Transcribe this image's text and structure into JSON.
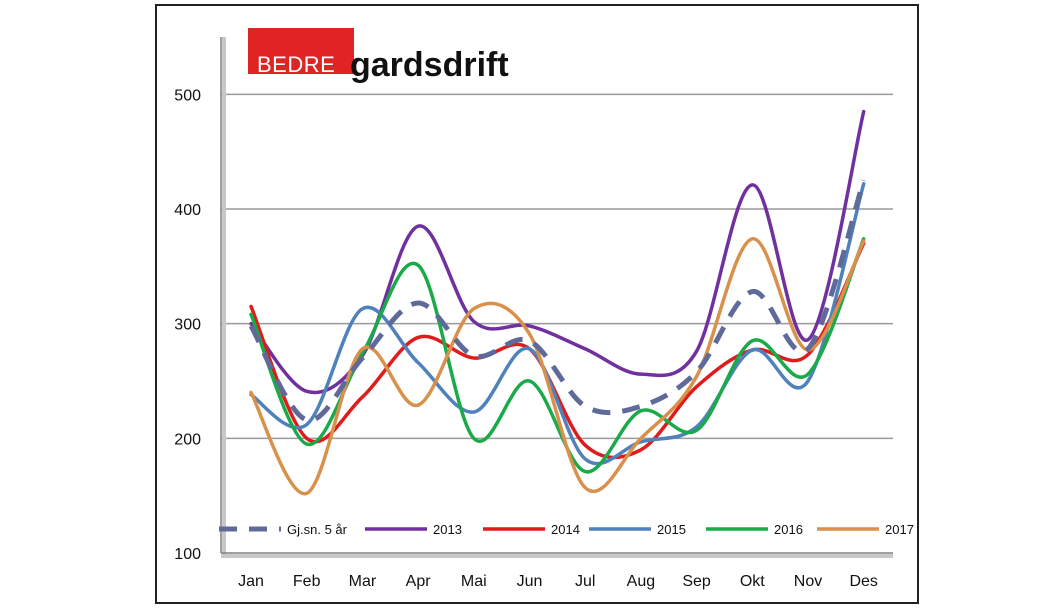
{
  "logo": {
    "part1": "BEDRE",
    "part2": "gardsdrift",
    "accent_color": "#e02424"
  },
  "chart_data": {
    "type": "line",
    "smooth": true,
    "categories": [
      "Jan",
      "Feb",
      "Mar",
      "Apr",
      "Mai",
      "Jun",
      "Jul",
      "Aug",
      "Sep",
      "Okt",
      "Nov",
      "Des"
    ],
    "ylim": [
      100,
      550
    ],
    "yticks": [
      100,
      200,
      300,
      400,
      500
    ],
    "grid": true,
    "legend_position": "bottom",
    "xlabel": "",
    "ylabel": "",
    "title": "",
    "series": [
      {
        "name": "Gj.sn. 5 år",
        "color": "#5f6a9a",
        "dashed": true,
        "values": [
          298,
          216,
          270,
          318,
          272,
          285,
          228,
          228,
          258,
          328,
          278,
          425
        ]
      },
      {
        "name": "2013",
        "color": "#7030a0",
        "dashed": false,
        "values": [
          300,
          241,
          272,
          385,
          302,
          298,
          278,
          256,
          276,
          421,
          286,
          485
        ]
      },
      {
        "name": "2014",
        "color": "#e01b1b",
        "dashed": false,
        "values": [
          315,
          200,
          236,
          288,
          270,
          278,
          194,
          190,
          245,
          277,
          273,
          370
        ]
      },
      {
        "name": "2015",
        "color": "#4f81bd",
        "dashed": false,
        "values": [
          238,
          212,
          313,
          266,
          223,
          278,
          182,
          197,
          210,
          277,
          250,
          422
        ]
      },
      {
        "name": "2016",
        "color": "#1aaa4a",
        "dashed": false,
        "values": [
          308,
          195,
          274,
          351,
          200,
          250,
          171,
          224,
          207,
          285,
          256,
          374
        ]
      },
      {
        "name": "2017",
        "color": "#d9904a",
        "dashed": false,
        "values": [
          240,
          152,
          278,
          229,
          313,
          291,
          157,
          200,
          254,
          374,
          277,
          372
        ]
      }
    ]
  }
}
